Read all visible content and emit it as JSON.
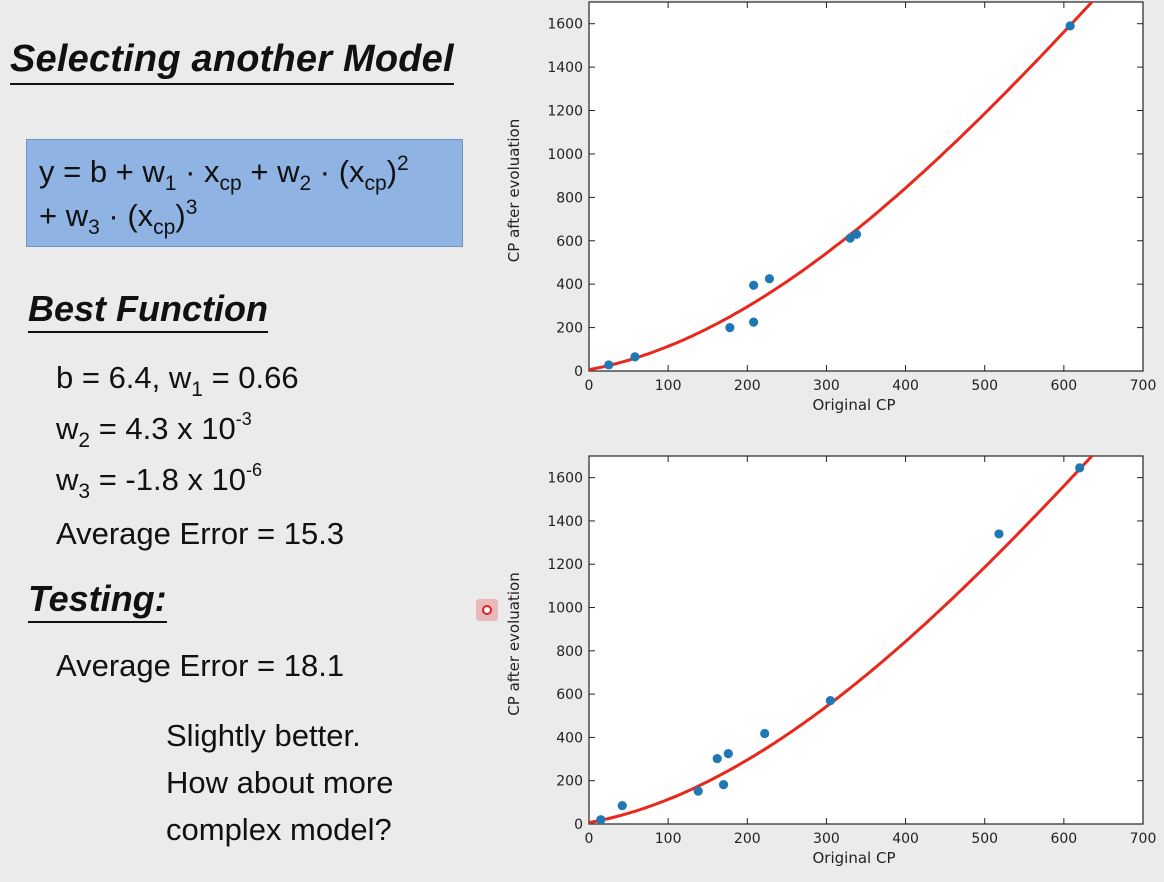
{
  "slide": {
    "title": "Selecting another Model",
    "formula": {
      "y": "y",
      "eq": " = b + w",
      "s1": "1",
      "m1": " · x",
      "cp": "cp",
      "plus_w": " + w",
      "s2": "2",
      "m2": " · (x",
      "cp2": "cp",
      "close2": ")",
      "p2": "2",
      "plus_w3": "+ w",
      "s3": "3",
      "m3": " · (x",
      "cp3": "cp",
      "close3": ")",
      "p3": "3"
    },
    "best_function_heading": "Best Function",
    "params": {
      "b_line_a": "b = 6.4, w",
      "b_line_sub": "1",
      "b_line_b": " = 0.66",
      "w2_a": "w",
      "w2_sub": "2",
      "w2_b": " = 4.3 x 10",
      "w2_exp": "-3",
      "w3_a": "w",
      "w3_sub": "3",
      "w3_b": " = -1.8 x 10",
      "w3_exp": "-6"
    },
    "train_error": "Average Error = 15.3",
    "testing_heading": "Testing:",
    "test_error": "Average Error = 18.1",
    "note": [
      "Slightly better.",
      "How about more",
      "complex model?"
    ]
  },
  "chart_data": [
    {
      "type": "scatter",
      "xlabel": "Original CP",
      "ylabel": "CP after evoluation",
      "xlim": [
        0,
        700
      ],
      "ylim": [
        0,
        1700
      ],
      "xticks": [
        0,
        100,
        200,
        300,
        400,
        500,
        600,
        700
      ],
      "yticks": [
        0,
        200,
        400,
        600,
        800,
        1000,
        1200,
        1400,
        1600
      ],
      "points": [
        [
          25,
          28
        ],
        [
          58,
          65
        ],
        [
          178,
          200
        ],
        [
          208,
          225
        ],
        [
          208,
          395
        ],
        [
          228,
          425
        ],
        [
          330,
          612
        ],
        [
          338,
          630
        ],
        [
          608,
          1590
        ]
      ],
      "fit": {
        "b": 6.4,
        "w1": 0.66,
        "w2": 0.0043,
        "w3": -1.8e-06
      },
      "colors": {
        "points": "#1f77b4",
        "fit": "#e8281c"
      }
    },
    {
      "type": "scatter",
      "xlabel": "Original CP",
      "ylabel": "CP after evoluation",
      "xlim": [
        0,
        700
      ],
      "ylim": [
        0,
        1700
      ],
      "xticks": [
        0,
        100,
        200,
        300,
        400,
        500,
        600,
        700
      ],
      "yticks": [
        0,
        200,
        400,
        600,
        800,
        1000,
        1200,
        1400,
        1600
      ],
      "points": [
        [
          15,
          20
        ],
        [
          42,
          85
        ],
        [
          138,
          152
        ],
        [
          162,
          302
        ],
        [
          170,
          182
        ],
        [
          176,
          325
        ],
        [
          222,
          418
        ],
        [
          305,
          570
        ],
        [
          518,
          1340
        ],
        [
          620,
          1645
        ]
      ],
      "fit": {
        "b": 6.4,
        "w1": 0.66,
        "w2": 0.0043,
        "w3": -1.8e-06
      },
      "colors": {
        "points": "#1f77b4",
        "fit": "#e8281c"
      }
    }
  ]
}
